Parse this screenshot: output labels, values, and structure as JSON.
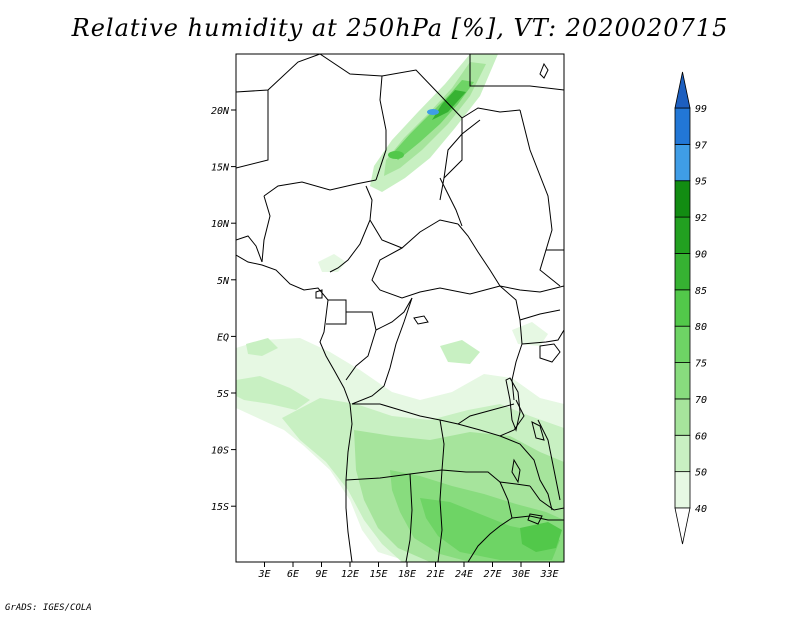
{
  "title": "Relative humidity at 250hPa [%], VT: 2020020715",
  "credit": "GrADS: IGES/COLA",
  "map": {
    "lat_ticks": [
      "20N",
      "15N",
      "10N",
      "5N",
      "EQ",
      "5S",
      "10S",
      "15S"
    ],
    "lon_ticks": [
      "3E",
      "6E",
      "9E",
      "12E",
      "15E",
      "18E",
      "21E",
      "24E",
      "27E",
      "30E",
      "33E"
    ]
  },
  "colorbar": {
    "labels": [
      "40",
      "50",
      "60",
      "70",
      "75",
      "80",
      "85",
      "90",
      "92",
      "95",
      "97",
      "99"
    ],
    "colors": [
      "#ffffff",
      "#e6f8e3",
      "#c8f0c2",
      "#a6e49c",
      "#88dc7e",
      "#6ed465",
      "#52c84a",
      "#36b232",
      "#22a020",
      "#128c12",
      "#3f9de6",
      "#2277d6",
      "#1d5fbf"
    ]
  }
}
